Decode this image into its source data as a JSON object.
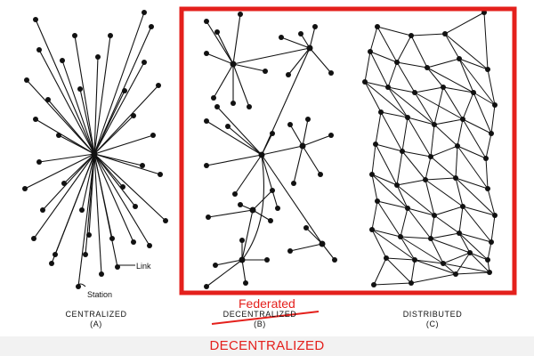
{
  "panels": [
    {
      "id": "centralized",
      "label": "CENTRALIZED",
      "sublabel": "(A)"
    },
    {
      "id": "decentralized",
      "label": "DECENTRALIZED",
      "sublabel": "(B)",
      "struck": true,
      "replacement_label": "Federated"
    },
    {
      "id": "distributed",
      "label": "DISTRIBUTED",
      "sublabel": "(C)"
    }
  ],
  "annotations": {
    "link": "Link",
    "station": "Station"
  },
  "highlight": {
    "title": "DECENTRALIZED",
    "color": "#e4201c"
  },
  "colors": {
    "ink": "#111111",
    "accent": "#e4201c",
    "footer": "#f2f2f2"
  }
}
